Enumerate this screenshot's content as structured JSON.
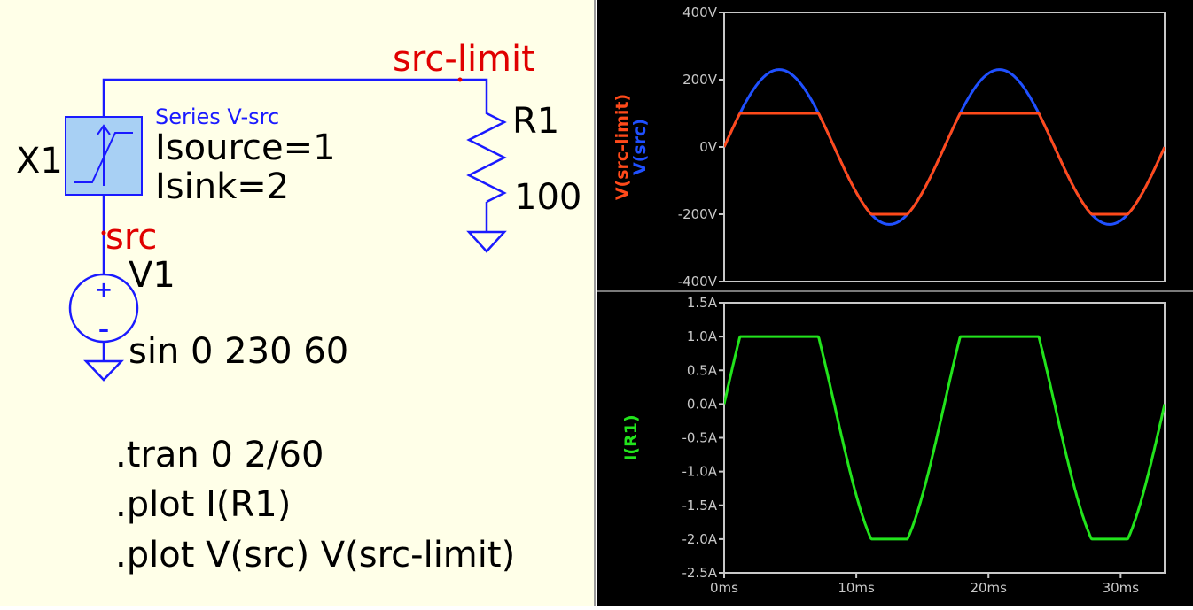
{
  "schematic": {
    "net_src_limit": "src-limit",
    "net_src": "src",
    "x1": {
      "ref": "X1",
      "desc": "Series V-src",
      "param1": "Isource=1",
      "param2": "Isink=2"
    },
    "r1": {
      "ref": "R1",
      "value": "100"
    },
    "v1": {
      "ref": "V1",
      "value": "sin 0 230 60",
      "plus": "+",
      "minus": "–"
    },
    "directives": [
      ".tran 0 2/60",
      ".plot I(R1)",
      ".plot V(src) V(src-limit)"
    ]
  },
  "colors": {
    "wire": "#1a1aff",
    "net_label": "#e00000",
    "component_fill": "#a8d0f4",
    "trace_src": "#1f50ff",
    "trace_src_limit": "#ff4a1a",
    "trace_i_r1": "#22e41c",
    "plot_bg": "#000000",
    "axis": "#c8c8c8"
  },
  "chart_data": [
    {
      "type": "line",
      "ylabel_series": [
        "V(src-limit)",
        "V(src)"
      ],
      "xlim": [
        0,
        33.33
      ],
      "ylim": [
        -400,
        400
      ],
      "yticks": [
        400,
        200,
        0,
        -200,
        -400
      ],
      "ytick_labels": [
        "400V",
        "200V",
        "0V",
        "-200V",
        "-400V"
      ],
      "grid": false,
      "series": [
        {
          "name": "V(src)",
          "color": "#1f50ff",
          "amplitude": 230,
          "freq_hz": 60,
          "clip_high": null,
          "clip_low": null,
          "x": [
            0,
            1,
            2,
            3,
            4,
            4.17,
            5,
            6,
            7,
            8,
            8.33,
            9,
            10,
            11,
            12,
            12.5,
            13,
            14,
            15,
            16,
            16.67,
            17,
            18,
            19,
            20,
            20.83,
            21,
            22,
            23,
            24,
            25,
            25.83,
            26,
            27,
            28,
            29,
            29.17,
            30,
            31,
            32,
            33.33
          ],
          "y": [
            0,
            84,
            156,
            205,
            229,
            230,
            219,
            177,
            111,
            31,
            0,
            -56,
            -135,
            -194,
            -225,
            -230,
            -226,
            -196,
            -138,
            -60,
            0,
            27,
            107,
            174,
            218,
            230,
            229,
            206,
            159,
            88,
            4,
            -60,
            -79,
            -153,
            -204,
            -229,
            -230,
            -221,
            -181,
            -117,
            0
          ]
        },
        {
          "name": "V(src-limit)",
          "color": "#ff4a1a",
          "amplitude": 230,
          "freq_hz": 60,
          "clip_high": 100,
          "clip_low": -200,
          "x": [
            0,
            1,
            2,
            3,
            4,
            5,
            6,
            7,
            8,
            8.33,
            9,
            10,
            11,
            12,
            13,
            14,
            15,
            16,
            16.67,
            17,
            18,
            19,
            20,
            21,
            22,
            23,
            24,
            25,
            26,
            27,
            28,
            29,
            30,
            31,
            32,
            33.33
          ],
          "y": [
            0,
            84,
            100,
            100,
            100,
            100,
            100,
            100,
            31,
            0,
            -56,
            -135,
            -194,
            -200,
            -200,
            -196,
            -138,
            -60,
            0,
            27,
            100,
            100,
            100,
            100,
            100,
            100,
            88,
            4,
            -79,
            -153,
            -200,
            -200,
            -200,
            -181,
            -117,
            0
          ]
        }
      ]
    },
    {
      "type": "line",
      "ylabel_series": [
        "I(R1)"
      ],
      "xlim": [
        0,
        33.33
      ],
      "ylim": [
        -2.5,
        1.5
      ],
      "yticks": [
        1.5,
        1.0,
        0.5,
        0.0,
        -0.5,
        -1.0,
        -1.5,
        -2.0,
        -2.5
      ],
      "ytick_labels": [
        "1.5A",
        "1.0A",
        "0.5A",
        "0.0A",
        "-0.5A",
        "-1.0A",
        "-1.5A",
        "-2.0A",
        "-2.5A"
      ],
      "xticks": [
        0,
        10,
        20,
        30
      ],
      "xtick_labels": [
        "0ms",
        "10ms",
        "20ms",
        "30ms"
      ],
      "grid": false,
      "series": [
        {
          "name": "I(R1)",
          "color": "#22e41c",
          "amplitude_a": 2.3,
          "freq_hz": 60,
          "clip_high": 1.0,
          "clip_low": -2.0,
          "x": [
            0,
            1,
            2,
            3,
            4,
            5,
            6,
            7,
            8,
            8.33,
            9,
            10,
            11,
            12,
            13,
            14,
            15,
            16,
            16.67,
            17,
            18,
            19,
            20,
            21,
            22,
            23,
            24,
            25,
            26,
            27,
            28,
            29,
            30,
            31,
            32,
            33.33
          ],
          "y": [
            0,
            0.84,
            1.0,
            1.0,
            1.0,
            1.0,
            1.0,
            1.0,
            0.31,
            0,
            -0.56,
            -1.35,
            -1.94,
            -2.0,
            -2.0,
            -1.96,
            -1.38,
            -0.6,
            0,
            0.27,
            1.0,
            1.0,
            1.0,
            1.0,
            1.0,
            1.0,
            0.88,
            0.04,
            -0.79,
            -1.53,
            -2.0,
            -2.0,
            -2.0,
            -1.81,
            -1.17,
            0
          ]
        }
      ]
    }
  ]
}
